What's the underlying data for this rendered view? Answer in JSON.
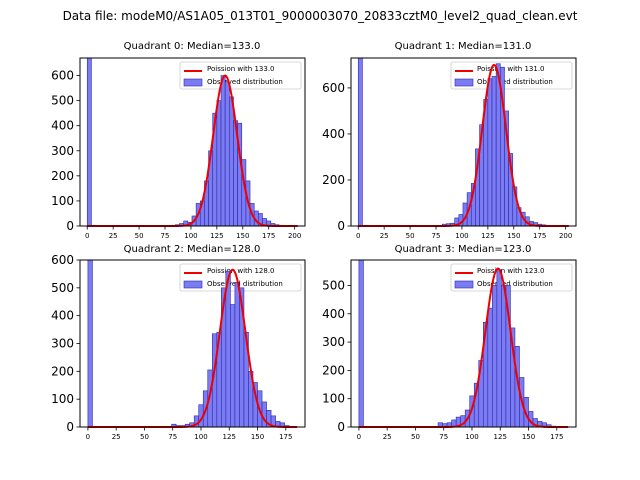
{
  "suptitle": "Data file: modeM0/AS1A05_013T01_9000003070_20833cztM0_level2_quad_clean.evt",
  "colors": {
    "bar_fill": "#7b7bf2",
    "bar_edge": "#2a2ab0",
    "curve": "#ee0000"
  },
  "chart_data": [
    {
      "type": "bar+line",
      "title": "Quadrant 0: Median=133.0",
      "median": 133,
      "legend": [
        "Poission with 133.0",
        "Observed distribution"
      ],
      "legend_position": "top-right",
      "xlim": [
        -7,
        210
      ],
      "ylim": [
        0,
        670
      ],
      "xticks": [
        0,
        25,
        50,
        75,
        100,
        125,
        150,
        175,
        200
      ],
      "yticks": [
        0,
        100,
        200,
        300,
        400,
        500,
        600
      ],
      "bin_width": 4,
      "bins": [
        0,
        73,
        77,
        81,
        85,
        89,
        93,
        97,
        101,
        105,
        109,
        113,
        117,
        121,
        125,
        129,
        133,
        137,
        141,
        145,
        149,
        153,
        157,
        161,
        165,
        169,
        173,
        177,
        181,
        185,
        189,
        193,
        197
      ],
      "counts": [
        670,
        2,
        2,
        3,
        5,
        10,
        20,
        15,
        40,
        90,
        100,
        180,
        300,
        450,
        500,
        600,
        575,
        515,
        420,
        410,
        265,
        180,
        90,
        60,
        50,
        30,
        20,
        10,
        5,
        3,
        2,
        1,
        1
      ],
      "curve_peak": 600
    },
    {
      "type": "bar+line",
      "title": "Quadrant 1: Median=131.0",
      "median": 131,
      "legend": [
        "Poission with 131.0",
        "Observed distribution"
      ],
      "legend_position": "top-right",
      "xlim": [
        -7,
        210
      ],
      "ylim": [
        0,
        730
      ],
      "xticks": [
        0,
        25,
        50,
        75,
        100,
        125,
        150,
        175,
        200
      ],
      "yticks": [
        0,
        200,
        400,
        600
      ],
      "bin_width": 4,
      "bins": [
        0,
        73,
        77,
        81,
        85,
        89,
        93,
        97,
        101,
        105,
        109,
        113,
        117,
        121,
        125,
        129,
        133,
        137,
        141,
        145,
        149,
        153,
        157,
        161,
        165,
        169,
        173,
        177,
        181,
        185,
        189,
        193
      ],
      "counts": [
        730,
        2,
        3,
        8,
        10,
        12,
        35,
        50,
        100,
        145,
        185,
        335,
        440,
        550,
        640,
        650,
        705,
        690,
        500,
        315,
        170,
        80,
        60,
        40,
        20,
        15,
        8,
        5,
        3,
        2,
        1,
        1
      ],
      "curve_peak": 700
    },
    {
      "type": "bar+line",
      "title": "Quadrant 2: Median=128.0",
      "median": 128,
      "legend": [
        "Poission with 128.0",
        "Observed distribution"
      ],
      "legend_position": "top-right",
      "xlim": [
        -7,
        192
      ],
      "ylim": [
        0,
        600
      ],
      "xticks": [
        0,
        25,
        50,
        75,
        100,
        125,
        150,
        175
      ],
      "yticks": [
        0,
        100,
        200,
        300,
        400,
        500,
        600
      ],
      "bin_width": 4,
      "bins": [
        0,
        70,
        74,
        78,
        82,
        86,
        90,
        94,
        98,
        102,
        106,
        110,
        114,
        118,
        122,
        126,
        130,
        134,
        138,
        142,
        146,
        150,
        154,
        158,
        162,
        166,
        170,
        174,
        178
      ],
      "counts": [
        600,
        1,
        10,
        5,
        5,
        10,
        15,
        40,
        80,
        130,
        205,
        335,
        340,
        500,
        560,
        440,
        520,
        500,
        340,
        200,
        160,
        130,
        90,
        60,
        40,
        20,
        15,
        5,
        2
      ],
      "curve_peak": 565
    },
    {
      "type": "bar+line",
      "title": "Quadrant 3: Median=123.0",
      "median": 123,
      "legend": [
        "Poission with 123.0",
        "Observed distribution"
      ],
      "legend_position": "top-right",
      "xlim": [
        -7,
        192
      ],
      "ylim": [
        0,
        590
      ],
      "xticks": [
        0,
        25,
        50,
        75,
        100,
        125,
        150,
        175
      ],
      "yticks": [
        0,
        100,
        200,
        300,
        400,
        500
      ],
      "bin_width": 4,
      "bins": [
        0,
        66,
        70,
        74,
        78,
        82,
        86,
        90,
        94,
        98,
        102,
        106,
        110,
        114,
        118,
        122,
        126,
        130,
        134,
        138,
        142,
        146,
        150,
        154,
        158,
        162,
        166,
        170
      ],
      "counts": [
        590,
        2,
        15,
        12,
        15,
        25,
        35,
        40,
        60,
        110,
        155,
        235,
        370,
        420,
        500,
        555,
        500,
        500,
        350,
        285,
        175,
        105,
        55,
        30,
        20,
        15,
        8,
        3
      ],
      "curve_peak": 560
    }
  ]
}
